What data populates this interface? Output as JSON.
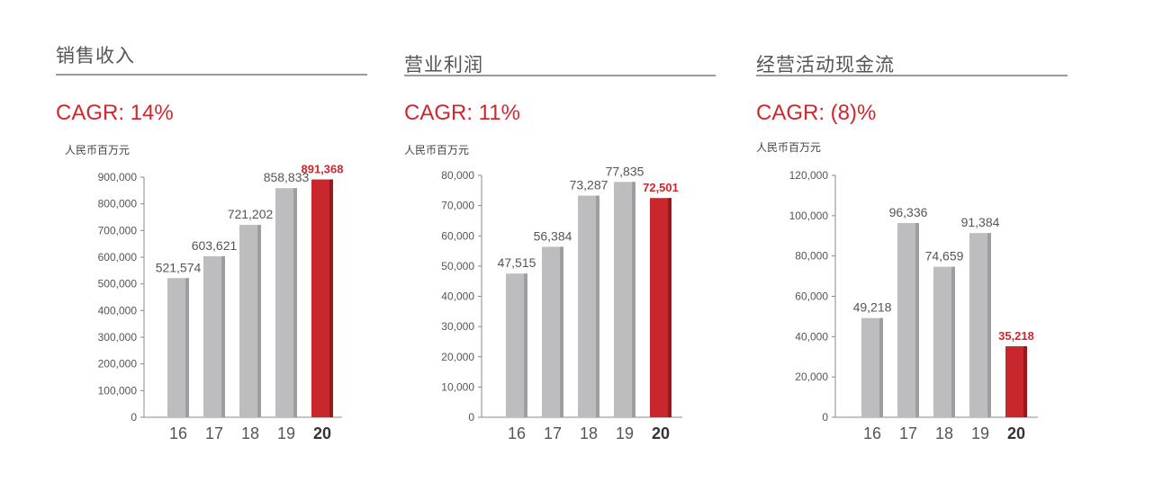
{
  "colors": {
    "bar": "#bdbdc0",
    "bar_shade": "#9e9ea2",
    "highlight": "#c8282d",
    "highlight_shade": "#98181c",
    "accent_text": "#d0262d"
  },
  "chart_data": [
    {
      "type": "bar",
      "title": "销售收入",
      "subtitle": "CAGR: 14%",
      "ylabel": "人民币百万元",
      "categories": [
        "16",
        "17",
        "18",
        "19",
        "20"
      ],
      "values": [
        521574,
        603621,
        721202,
        858833,
        891368
      ],
      "value_labels": [
        "521,574",
        "603,621",
        "721,202",
        "858,833",
        "891,368"
      ],
      "highlight_index": 4,
      "ylim": [
        0,
        900000
      ],
      "yticks": [
        0,
        100000,
        200000,
        300000,
        400000,
        500000,
        600000,
        700000,
        800000,
        900000
      ],
      "ytick_labels": [
        "0",
        "100,000",
        "200,000",
        "300,000",
        "400,000",
        "500,000",
        "600,000",
        "700,000",
        "800,000",
        "900,000"
      ],
      "grid": false
    },
    {
      "type": "bar",
      "title": "营业利润",
      "subtitle": "CAGR: 11%",
      "ylabel": "人民币百万元",
      "categories": [
        "16",
        "17",
        "18",
        "19",
        "20"
      ],
      "values": [
        47515,
        56384,
        73287,
        77835,
        72501
      ],
      "value_labels": [
        "47,515",
        "56,384",
        "73,287",
        "77,835",
        "72,501"
      ],
      "highlight_index": 4,
      "ylim": [
        0,
        80000
      ],
      "yticks": [
        0,
        10000,
        20000,
        30000,
        40000,
        50000,
        60000,
        70000,
        80000
      ],
      "ytick_labels": [
        "0",
        "10,000",
        "20,000",
        "30,000",
        "40,000",
        "50,000",
        "60,000",
        "70,000",
        "80,000"
      ],
      "grid": false
    },
    {
      "type": "bar",
      "title": "经营活动现金流",
      "subtitle": "CAGR: (8)%",
      "ylabel": "人民币百万元",
      "categories": [
        "16",
        "17",
        "18",
        "19",
        "20"
      ],
      "values": [
        49218,
        96336,
        74659,
        91384,
        35218
      ],
      "value_labels": [
        "49,218",
        "96,336",
        "74,659",
        "91,384",
        "35,218"
      ],
      "highlight_index": 4,
      "ylim": [
        0,
        120000
      ],
      "yticks": [
        0,
        20000,
        40000,
        60000,
        80000,
        100000,
        120000
      ],
      "ytick_labels": [
        "0",
        "20,000",
        "40,000",
        "60,000",
        "80,000",
        "100,000",
        "120,000"
      ],
      "grid": false
    }
  ]
}
